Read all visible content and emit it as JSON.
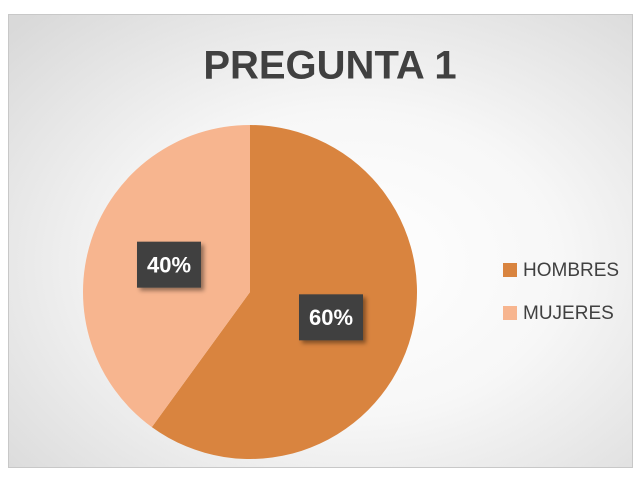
{
  "chart_data": {
    "type": "pie",
    "title": "PREGUNTA 1",
    "categories": [
      "HOMBRES",
      "MUJERES"
    ],
    "values": [
      60,
      40
    ],
    "value_labels": [
      "60%",
      "40%"
    ],
    "colors": [
      "#d9843f",
      "#f7b58f"
    ],
    "legend": "right"
  }
}
